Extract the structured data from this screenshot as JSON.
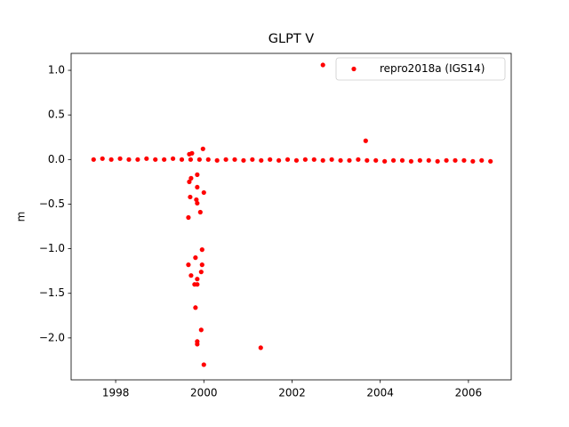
{
  "chart_data": {
    "type": "scatter",
    "title": "GLPT V",
    "ylabel": "m",
    "x": [
      1997.5,
      1997.7,
      1997.9,
      1998.1,
      1998.3,
      1998.5,
      1998.7,
      1998.9,
      1999.1,
      1999.3,
      1999.5,
      1999.7,
      1999.9,
      2000.1,
      2000.3,
      2000.5,
      2000.7,
      2000.9,
      2001.1,
      2001.3,
      2001.5,
      2001.7,
      2001.9,
      2002.1,
      2002.3,
      2002.5,
      2002.7,
      2002.9,
      2003.1,
      2003.3,
      2003.5,
      2003.7,
      2003.9,
      2004.1,
      2004.3,
      2004.5,
      2004.7,
      2004.9,
      2005.1,
      2005.3,
      2005.5,
      2005.7,
      2005.9,
      2006.1,
      2006.3,
      2006.5,
      2002.7,
      2003.67,
      1999.98,
      1999.67,
      1999.73,
      1999.71,
      1999.67,
      1999.85,
      1999.85,
      2000.0,
      1999.69,
      1999.83,
      1999.85,
      1999.92,
      1999.65,
      1999.96,
      1999.81,
      1999.65,
      1999.96,
      1999.94,
      1999.71,
      1999.85,
      1999.79,
      1999.85,
      1999.81,
      1999.94,
      1999.85,
      1999.85,
      2000.0,
      2001.29
    ],
    "series": [
      {
        "name": "repro2018a (IGS14)",
        "color": "#ff0000",
        "values": [
          0.0,
          0.01,
          0.0,
          0.01,
          0.0,
          0.0,
          0.01,
          0.0,
          0.0,
          0.01,
          0.0,
          0.0,
          0.0,
          0.0,
          -0.01,
          0.0,
          0.0,
          -0.01,
          0.0,
          -0.01,
          0.0,
          -0.01,
          0.0,
          -0.01,
          0.0,
          0.0,
          -0.01,
          0.0,
          -0.01,
          -0.01,
          0.0,
          -0.01,
          -0.01,
          -0.02,
          -0.01,
          -0.01,
          -0.02,
          -0.01,
          -0.01,
          -0.02,
          -0.01,
          -0.01,
          -0.01,
          -0.02,
          -0.01,
          -0.02,
          1.06,
          0.21,
          0.12,
          0.06,
          0.07,
          -0.21,
          -0.25,
          -0.17,
          -0.31,
          -0.37,
          -0.42,
          -0.45,
          -0.49,
          -0.59,
          -0.65,
          -1.01,
          -1.1,
          -1.18,
          -1.18,
          -1.26,
          -1.3,
          -1.34,
          -1.4,
          -1.4,
          -1.66,
          -1.91,
          -2.04,
          -2.07,
          -2.3,
          -2.11
        ]
      }
    ],
    "xlim": [
      1996.99,
      2006.97
    ],
    "xticks": [
      1998,
      2000,
      2002,
      2004,
      2006
    ],
    "ylim": [
      -2.47,
      1.19
    ],
    "yticks": [
      {
        "value": -2.0,
        "label": "−2.0"
      },
      {
        "value": -1.5,
        "label": "−1.5"
      },
      {
        "value": -1.0,
        "label": "−1.0"
      },
      {
        "value": -0.5,
        "label": "−0.5"
      },
      {
        "value": 0.0,
        "label": "0.0"
      },
      {
        "value": 0.5,
        "label": "0.5"
      },
      {
        "value": 1.0,
        "label": "1.0"
      }
    ],
    "legend": "upper right"
  }
}
